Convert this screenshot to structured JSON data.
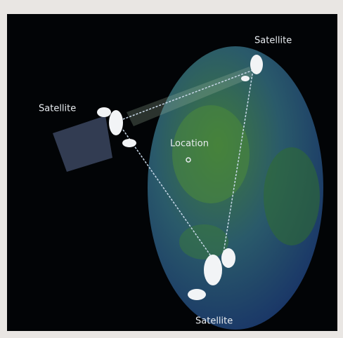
{
  "nodes": [
    {
      "label": "Satellite"
    },
    {
      "label": "Satellite"
    },
    {
      "label": "Satellite"
    },
    {
      "label": "Location"
    }
  ]
}
